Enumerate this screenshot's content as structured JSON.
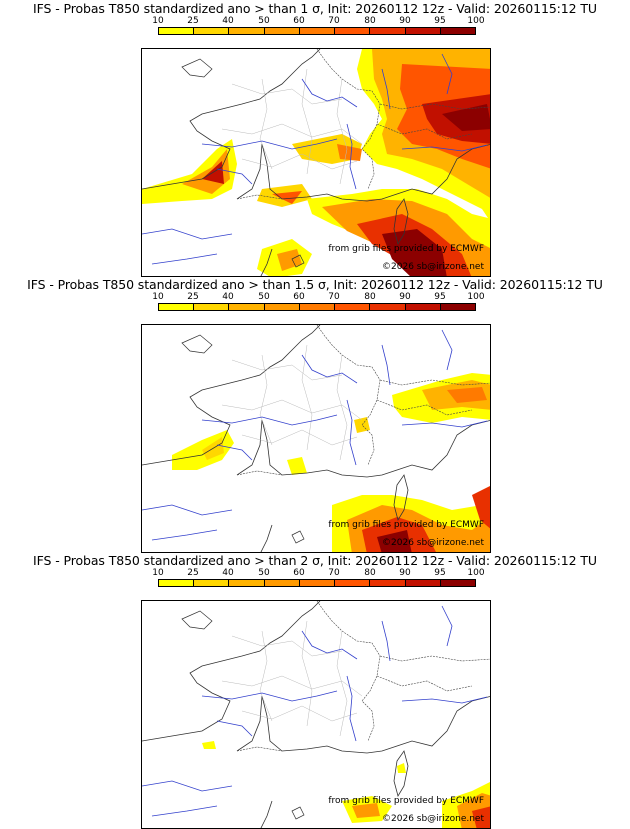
{
  "colorbar": {
    "labels": [
      "10",
      "25",
      "40",
      "50",
      "60",
      "70",
      "80",
      "90",
      "95",
      "100"
    ],
    "colors": [
      "#ffff00",
      "#ffd700",
      "#ffb300",
      "#ff9a00",
      "#ff7a00",
      "#ff5500",
      "#e83000",
      "#c11000",
      "#8c0000"
    ]
  },
  "panels": [
    {
      "title": "IFS - Probas T850  standardized ano > than 1 σ, Init: 20260112 12z - Valid: 20260115:12 TU",
      "credit_source": "from grib files provided by ECMWF",
      "credit_copyright": "©2026 sb@irizone.net"
    },
    {
      "title": "IFS - Probas T850  standardized ano > than 1.5 σ, Init: 20260112 12z - Valid: 20260115:12 TU",
      "credit_source": "from grib files provided by ECMWF",
      "credit_copyright": "©2026 sb@irizone.net"
    },
    {
      "title": "IFS - Probas T850  standardized ano > than 2 σ, Init: 20260112 12z - Valid: 20260115:12 TU",
      "credit_source": "from grib files provided by ECMWF",
      "credit_copyright": "©2026 sb@irizone.net"
    }
  ]
}
